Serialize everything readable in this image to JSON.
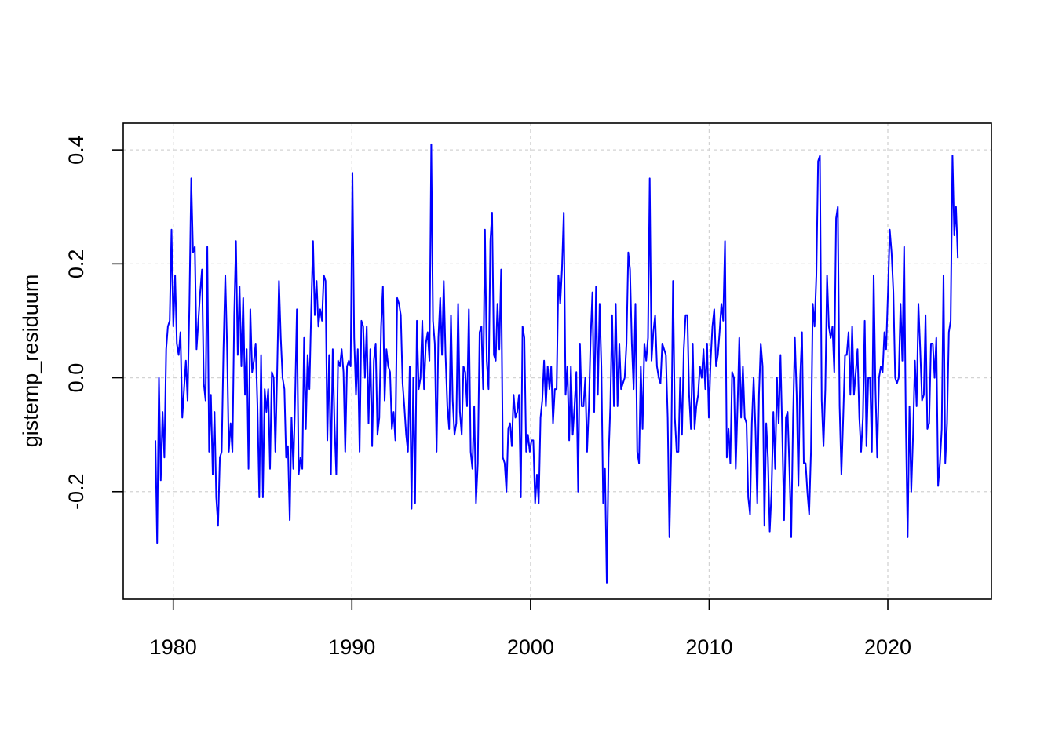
{
  "chart_data": {
    "type": "line",
    "title": "",
    "xlabel": "",
    "ylabel": "gistemp_residuum",
    "xlim": [
      1977.2,
      2025.8
    ],
    "ylim": [
      -0.389,
      0.447
    ],
    "xticks": [
      1980,
      1990,
      2000,
      2010,
      2020
    ],
    "xtick_labels": [
      "1980",
      "1990",
      "2000",
      "2010",
      "2020"
    ],
    "yticks": [
      -0.2,
      0.0,
      0.2,
      0.4
    ],
    "ytick_labels": [
      "-0.2",
      "0.0",
      "0.2",
      "0.4"
    ],
    "grid": true,
    "legend": "none",
    "series": [
      {
        "color": "#0000ff",
        "x_start": 1979.0,
        "x_end": 2023.92,
        "values": [
          -0.11,
          -0.29,
          0.0,
          -0.18,
          -0.06,
          -0.14,
          0.05,
          0.09,
          0.1,
          0.26,
          0.09,
          0.18,
          0.06,
          0.04,
          0.08,
          -0.07,
          -0.02,
          0.03,
          -0.04,
          0.13,
          0.35,
          0.22,
          0.23,
          0.05,
          0.1,
          0.15,
          0.19,
          -0.01,
          -0.04,
          0.23,
          -0.13,
          -0.03,
          -0.17,
          -0.06,
          -0.21,
          -0.26,
          -0.14,
          -0.13,
          0.05,
          0.18,
          0.06,
          -0.13,
          -0.08,
          -0.13,
          0.11,
          0.24,
          0.04,
          0.16,
          0.02,
          0.14,
          -0.03,
          0.05,
          -0.16,
          0.12,
          0.01,
          0.03,
          0.06,
          -0.05,
          -0.21,
          0.04,
          -0.21,
          -0.02,
          -0.06,
          -0.02,
          -0.16,
          0.01,
          0.0,
          -0.13,
          0.01,
          0.17,
          0.07,
          0.0,
          -0.02,
          -0.14,
          -0.12,
          -0.25,
          -0.07,
          -0.16,
          -0.04,
          0.12,
          -0.17,
          -0.14,
          -0.16,
          0.07,
          -0.09,
          0.04,
          -0.02,
          0.12,
          0.24,
          0.11,
          0.17,
          0.09,
          0.12,
          0.1,
          0.18,
          0.17,
          -0.11,
          0.04,
          -0.17,
          0.05,
          -0.08,
          -0.17,
          0.03,
          0.02,
          0.05,
          0.01,
          -0.13,
          0.02,
          0.03,
          0.02,
          0.36,
          0.07,
          -0.03,
          0.05,
          -0.13,
          0.1,
          0.09,
          0.0,
          0.09,
          -0.08,
          0.05,
          -0.12,
          0.03,
          0.06,
          -0.1,
          -0.07,
          0.09,
          0.16,
          -0.04,
          0.05,
          0.02,
          0.01,
          -0.09,
          -0.06,
          -0.11,
          0.14,
          0.13,
          0.11,
          -0.01,
          -0.05,
          -0.1,
          -0.13,
          0.02,
          -0.23,
          0.0,
          -0.22,
          0.1,
          -0.02,
          0.0,
          0.1,
          -0.02,
          0.06,
          0.08,
          0.03,
          0.41,
          0.1,
          0.06,
          -0.13,
          0.07,
          0.14,
          0.04,
          0.17,
          0.04,
          -0.05,
          -0.09,
          0.11,
          -0.04,
          -0.1,
          -0.08,
          0.13,
          -0.06,
          -0.1,
          0.02,
          0.01,
          -0.05,
          0.12,
          -0.13,
          -0.16,
          -0.05,
          -0.22,
          -0.15,
          0.08,
          0.09,
          -0.02,
          0.26,
          0.03,
          -0.02,
          0.24,
          0.29,
          0.04,
          0.03,
          0.13,
          0.05,
          0.19,
          -0.14,
          -0.15,
          -0.2,
          -0.09,
          -0.08,
          -0.12,
          -0.03,
          -0.07,
          -0.06,
          -0.03,
          -0.21,
          0.09,
          0.07,
          -0.13,
          -0.1,
          -0.13,
          -0.11,
          -0.11,
          -0.22,
          -0.17,
          -0.22,
          -0.07,
          -0.04,
          0.03,
          -0.05,
          0.02,
          -0.02,
          0.02,
          -0.08,
          -0.02,
          -0.02,
          0.18,
          0.13,
          0.19,
          0.29,
          -0.03,
          0.02,
          -0.11,
          0.02,
          -0.1,
          -0.05,
          0.01,
          -0.2,
          0.06,
          -0.05,
          -0.05,
          0.0,
          -0.13,
          -0.05,
          0.07,
          0.15,
          -0.06,
          0.16,
          -0.03,
          0.13,
          0.02,
          -0.22,
          -0.16,
          -0.36,
          -0.14,
          -0.05,
          0.11,
          -0.05,
          0.13,
          -0.05,
          0.06,
          -0.02,
          -0.01,
          0.0,
          0.06,
          0.22,
          0.19,
          0.06,
          -0.02,
          0.13,
          -0.13,
          -0.15,
          0.02,
          -0.09,
          0.06,
          0.03,
          0.07,
          0.35,
          0.03,
          0.08,
          0.11,
          0.02,
          0.0,
          -0.01,
          0.06,
          0.05,
          0.04,
          -0.07,
          -0.28,
          -0.13,
          0.17,
          -0.07,
          -0.13,
          -0.13,
          0.0,
          -0.1,
          0.05,
          0.11,
          0.11,
          -0.03,
          -0.09,
          0.06,
          -0.09,
          -0.05,
          -0.03,
          0.02,
          0.0,
          0.05,
          -0.02,
          0.06,
          -0.07,
          0.03,
          0.09,
          0.12,
          0.02,
          0.04,
          0.08,
          0.13,
          0.1,
          0.24,
          -0.14,
          -0.09,
          -0.15,
          0.01,
          0.0,
          -0.16,
          -0.05,
          0.07,
          -0.07,
          0.02,
          -0.07,
          -0.08,
          -0.21,
          -0.24,
          -0.08,
          0.0,
          -0.09,
          -0.22,
          -0.03,
          0.06,
          0.02,
          -0.26,
          -0.08,
          -0.14,
          -0.27,
          -0.2,
          -0.06,
          -0.16,
          0.0,
          -0.08,
          0.04,
          -0.1,
          -0.25,
          -0.07,
          -0.06,
          -0.16,
          -0.28,
          -0.07,
          0.07,
          -0.03,
          -0.19,
          0.0,
          0.08,
          -0.15,
          -0.15,
          -0.2,
          -0.24,
          -0.13,
          0.13,
          0.09,
          0.18,
          0.38,
          0.39,
          -0.04,
          -0.12,
          -0.02,
          0.18,
          0.09,
          0.07,
          0.09,
          0.01,
          0.28,
          0.3,
          -0.05,
          -0.17,
          -0.07,
          0.04,
          0.04,
          0.08,
          -0.03,
          0.09,
          -0.03,
          0.01,
          0.05,
          -0.07,
          -0.13,
          -0.07,
          0.1,
          -0.12,
          0.0,
          0.0,
          -0.13,
          0.18,
          -0.02,
          -0.14,
          0.0,
          0.02,
          0.01,
          0.08,
          0.05,
          0.15,
          0.26,
          0.22,
          0.15,
          0.0,
          -0.01,
          0.0,
          0.13,
          0.03,
          0.23,
          -0.08,
          -0.28,
          -0.05,
          -0.2,
          -0.1,
          0.03,
          -0.05,
          0.13,
          0.05,
          -0.04,
          -0.03,
          0.11,
          -0.09,
          -0.08,
          0.06,
          0.06,
          0.0,
          0.07,
          -0.19,
          -0.15,
          -0.09,
          0.18,
          -0.15,
          -0.08,
          0.08,
          0.1,
          0.39,
          0.25,
          0.3,
          0.21
        ]
      }
    ]
  }
}
